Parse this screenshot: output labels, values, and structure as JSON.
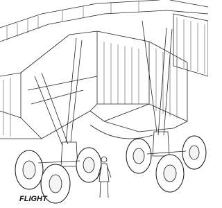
{
  "logo": "FLIGHT"
}
